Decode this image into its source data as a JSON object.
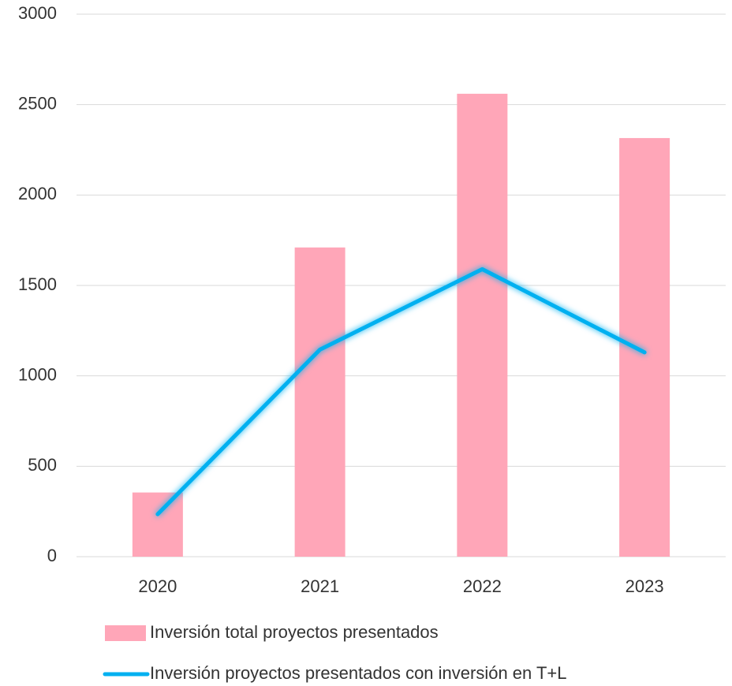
{
  "chart_data": {
    "type": "combo",
    "categories": [
      "2020",
      "2021",
      "2022",
      "2023"
    ],
    "series": [
      {
        "name": "Inversión total proyectos presentados",
        "type": "bar",
        "color": "#ffa6b8",
        "values": [
          355,
          1710,
          2560,
          2315
        ]
      },
      {
        "name": "Inversión proyectos presentados con inversión en T+L",
        "type": "line",
        "color": "#00b0f0",
        "values": [
          235,
          1145,
          1590,
          1130
        ]
      }
    ],
    "ylim": [
      0,
      3000
    ],
    "yticks": [
      0,
      500,
      1000,
      1500,
      2000,
      2500,
      3000
    ],
    "grid": true,
    "legend": "bottom"
  }
}
